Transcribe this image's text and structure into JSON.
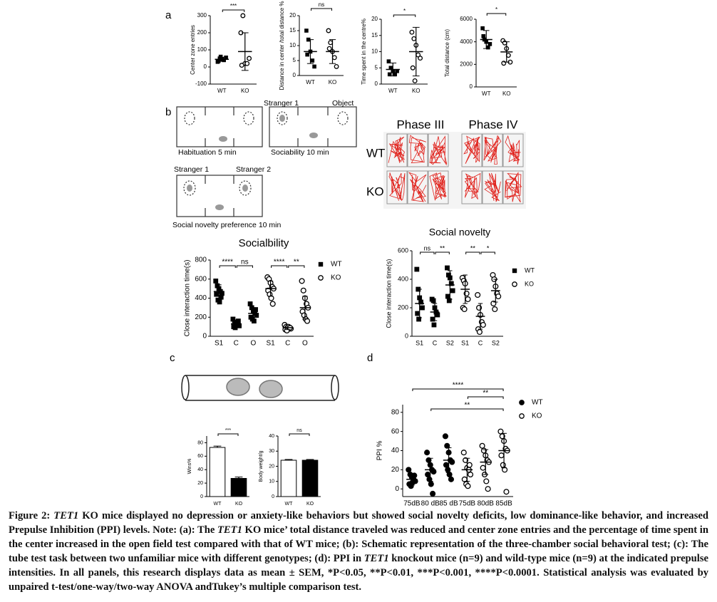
{
  "panel_labels": [
    "a",
    "b",
    "c",
    "d"
  ],
  "chart_data": [
    {
      "type": "dot",
      "y_label": "Center zone entries",
      "ylim": [
        -100,
        300
      ],
      "yticks": [
        -100,
        0,
        100,
        200,
        300
      ],
      "categories": [
        "WT",
        "KO"
      ],
      "significance": [
        "***"
      ],
      "groups": [
        {
          "marker": "square",
          "points": [
            30,
            50,
            45,
            40,
            55,
            35,
            60
          ],
          "mean": 45,
          "sd": 12
        },
        {
          "marker": "circle",
          "points": [
            200,
            300,
            20,
            20,
            50,
            10
          ],
          "mean": 90,
          "sd": 110
        }
      ]
    },
    {
      "type": "dot",
      "y_label": "Distance in center /total distance %",
      "ylim": [
        0,
        20
      ],
      "yticks": [
        0,
        5,
        10,
        15,
        20
      ],
      "categories": [
        "WT",
        "KO"
      ],
      "significance": [
        "ns"
      ],
      "groups": [
        {
          "marker": "square",
          "points": [
            15,
            12,
            8,
            5,
            3,
            7
          ],
          "mean": 8,
          "sd": 4
        },
        {
          "marker": "circle",
          "points": [
            15,
            11,
            8,
            6,
            3,
            9
          ],
          "mean": 8,
          "sd": 4
        }
      ]
    },
    {
      "type": "dot",
      "y_label": "Time spent in the centre%",
      "ylim": [
        0,
        20
      ],
      "yticks": [
        0,
        5,
        10,
        15,
        20
      ],
      "categories": [
        "WT",
        "KO"
      ],
      "significance": [
        "*"
      ],
      "groups": [
        {
          "marker": "square",
          "points": [
            7,
            5,
            4,
            3,
            4,
            3
          ],
          "mean": 4.5,
          "sd": 2
        },
        {
          "marker": "circle",
          "points": [
            16,
            14,
            12,
            9,
            8,
            5,
            1
          ],
          "mean": 10,
          "sd": 7.5
        }
      ]
    },
    {
      "type": "dot",
      "y_label": "Total distance (cm)",
      "ylim": [
        0,
        6000
      ],
      "yticks": [
        0,
        2000,
        4000,
        6000
      ],
      "categories": [
        "WT",
        "KO"
      ],
      "significance": [
        "*"
      ],
      "groups": [
        {
          "marker": "square",
          "points": [
            5200,
            4200,
            4000,
            3500,
            3800,
            4500
          ],
          "mean": 4200,
          "sd": 800
        },
        {
          "marker": "circle",
          "points": [
            4100,
            3900,
            3400,
            2800,
            2200,
            2100
          ],
          "mean": 3100,
          "sd": 900
        }
      ]
    },
    {
      "type": "dot",
      "title": "Socialbility",
      "y_label": "Close interaction time(s)",
      "ylim": [
        0,
        800
      ],
      "yticks": [
        0,
        200,
        400,
        600,
        800
      ],
      "categories": [
        "S1",
        "C",
        "O",
        "S1",
        "C",
        "O"
      ],
      "significance": [
        "****",
        "ns",
        "****",
        "**"
      ],
      "legend": [
        {
          "name": "WT",
          "marker": "square"
        },
        {
          "name": "KO",
          "marker": "circle"
        }
      ],
      "groups": [
        {
          "marker": "square",
          "points": [
            580,
            530,
            500,
            470,
            450,
            440,
            380,
            360,
            410
          ],
          "mean": 470,
          "sd": 70
        },
        {
          "marker": "square",
          "points": [
            180,
            150,
            130,
            120,
            110,
            100,
            90,
            140,
            160
          ],
          "mean": 130,
          "sd": 35
        },
        {
          "marker": "square",
          "points": [
            340,
            300,
            260,
            240,
            220,
            200,
            180,
            160,
            280
          ],
          "mean": 240,
          "sd": 60
        },
        {
          "marker": "circle",
          "points": [
            620,
            600,
            560,
            520,
            500,
            480,
            440,
            400,
            340
          ],
          "mean": 500,
          "sd": 80
        },
        {
          "marker": "circle",
          "points": [
            120,
            100,
            90,
            80,
            80,
            70,
            60,
            100,
            90
          ],
          "mean": 90,
          "sd": 20
        },
        {
          "marker": "circle",
          "points": [
            580,
            480,
            400,
            340,
            300,
            260,
            220,
            180,
            160
          ],
          "mean": 300,
          "sd": 120
        }
      ]
    },
    {
      "type": "dot",
      "title": "Social novelty",
      "y_label": "Close interaction time(s)",
      "ylim": [
        0,
        600
      ],
      "yticks": [
        0,
        200,
        400,
        600
      ],
      "categories": [
        "S1",
        "C",
        "S2",
        "S1",
        "C",
        "S2"
      ],
      "significance": [
        "ns",
        "**",
        "**",
        "*"
      ],
      "legend": [
        {
          "name": "WT",
          "marker": "square"
        },
        {
          "name": "KO",
          "marker": "circle"
        }
      ],
      "groups": [
        {
          "marker": "square",
          "points": [
            470,
            330,
            270,
            240,
            200,
            160,
            120
          ],
          "mean": 230,
          "sd": 100
        },
        {
          "marker": "square",
          "points": [
            260,
            250,
            200,
            170,
            150,
            120,
            80
          ],
          "mean": 170,
          "sd": 60
        },
        {
          "marker": "square",
          "points": [
            480,
            430,
            410,
            370,
            320,
            280,
            250
          ],
          "mean": 360,
          "sd": 100
        },
        {
          "marker": "circle",
          "points": [
            410,
            390,
            370,
            300,
            260,
            200,
            190
          ],
          "mean": 330,
          "sd": 100
        },
        {
          "marker": "circle",
          "points": [
            290,
            200,
            150,
            100,
            80,
            50,
            30
          ],
          "mean": 140,
          "sd": 90
        },
        {
          "marker": "circle",
          "points": [
            430,
            400,
            350,
            300,
            280,
            230,
            190
          ],
          "mean": 320,
          "sd": 80
        }
      ]
    },
    {
      "type": "bar",
      "y_label": "Wins%",
      "ylim": [
        0,
        90
      ],
      "yticks": [
        0,
        20,
        40,
        60,
        80
      ],
      "categories": [
        "WT",
        "KO"
      ],
      "significance": [
        "***"
      ],
      "groups": [
        {
          "fill": "#ffffff",
          "mean": 73,
          "sd": 2
        },
        {
          "fill": "#000000",
          "mean": 27,
          "sd": 2
        }
      ]
    },
    {
      "type": "bar",
      "y_label": "Body weight/g",
      "ylim": [
        0,
        40
      ],
      "yticks": [
        0,
        10,
        20,
        30,
        40
      ],
      "categories": [
        "WT",
        "KO"
      ],
      "significance": [
        "ns"
      ],
      "groups": [
        {
          "fill": "#ffffff",
          "mean": 24,
          "sd": 0.5
        },
        {
          "fill": "#000000",
          "mean": 24,
          "sd": 0.5
        }
      ]
    },
    {
      "type": "dot",
      "y_label": "PPI %",
      "ylim": [
        -8,
        88
      ],
      "yticks": [
        0,
        20,
        40,
        60,
        80
      ],
      "categories": [
        "75dB",
        "80 dB",
        "85 dB",
        "75dB",
        "80dB",
        "85dB"
      ],
      "significance": [
        "****",
        "**",
        "**"
      ],
      "legend": [
        {
          "name": "WT",
          "marker": "dot"
        },
        {
          "name": "KO",
          "marker": "circle"
        }
      ],
      "groups": [
        {
          "marker": "dot",
          "points": [
            20,
            15,
            12,
            10,
            8,
            5,
            3,
            7,
            14
          ],
          "mean": 10,
          "sd": 6
        },
        {
          "marker": "dot",
          "points": [
            38,
            30,
            25,
            20,
            18,
            15,
            10,
            5,
            -5
          ],
          "mean": 20,
          "sd": 12
        },
        {
          "marker": "dot",
          "points": [
            55,
            45,
            38,
            30,
            28,
            25,
            20,
            15,
            10
          ],
          "mean": 30,
          "sd": 13
        },
        {
          "marker": "circle",
          "points": [
            38,
            30,
            22,
            20,
            15,
            10,
            5,
            3,
            25
          ],
          "mean": 20,
          "sd": 12
        },
        {
          "marker": "circle",
          "points": [
            45,
            40,
            35,
            30,
            28,
            22,
            15,
            8,
            0
          ],
          "mean": 28,
          "sd": 13
        },
        {
          "marker": "circle",
          "points": [
            60,
            55,
            50,
            42,
            40,
            35,
            25,
            20,
            -3
          ],
          "mean": 40,
          "sd": 18
        }
      ]
    }
  ],
  "schematic": {
    "labels": [
      "Stranger 1",
      "Object",
      "Habituation 5 min",
      "Sociability 10 min",
      "Stranger 1",
      "Stranger 2",
      "Social novelty preference 10 min"
    ],
    "tracks": {
      "phases": [
        "Phase III",
        "Phase IV"
      ],
      "rows": [
        "WT",
        "KO"
      ]
    }
  },
  "caption": {
    "segments": [
      {
        "text": "Figure 2: ",
        "style": "bold"
      },
      {
        "text": "TET1",
        "style": "italic"
      },
      {
        "text": " KO mice displayed no depression or anxiety-like behaviors but showed social novelty deficits, low dominance-like behavior, and increased Prepulse Inhibition (PPI) levels. Note: (a): The ",
        "style": "normal"
      },
      {
        "text": "TET1",
        "style": "italic"
      },
      {
        "text": " KO mice’ total distance traveled was reduced and center zone entries and the percentage of time spent in the center increased in the open field test compared with that of WT mice; (b): Schematic representation of the three-chamber social behavioral test; (c): The tube test task between two unfamiliar mice with different genotypes; (d): PPI in ",
        "style": "normal"
      },
      {
        "text": "TET1",
        "style": "italic"
      },
      {
        "text": " knockout mice (n=9) and wild-type mice (n=9) at the indicated prepulse intensities. In all panels, this research displays data as mean ± SEM, *P<0.05, **P<0.01, ***P<0.001, ****P<0.0001. Statistical analysis was evaluated by unpaired t-test/one-way/two-way ANOVA andTukey’s multiple comparison test.",
        "style": "normal"
      }
    ]
  }
}
